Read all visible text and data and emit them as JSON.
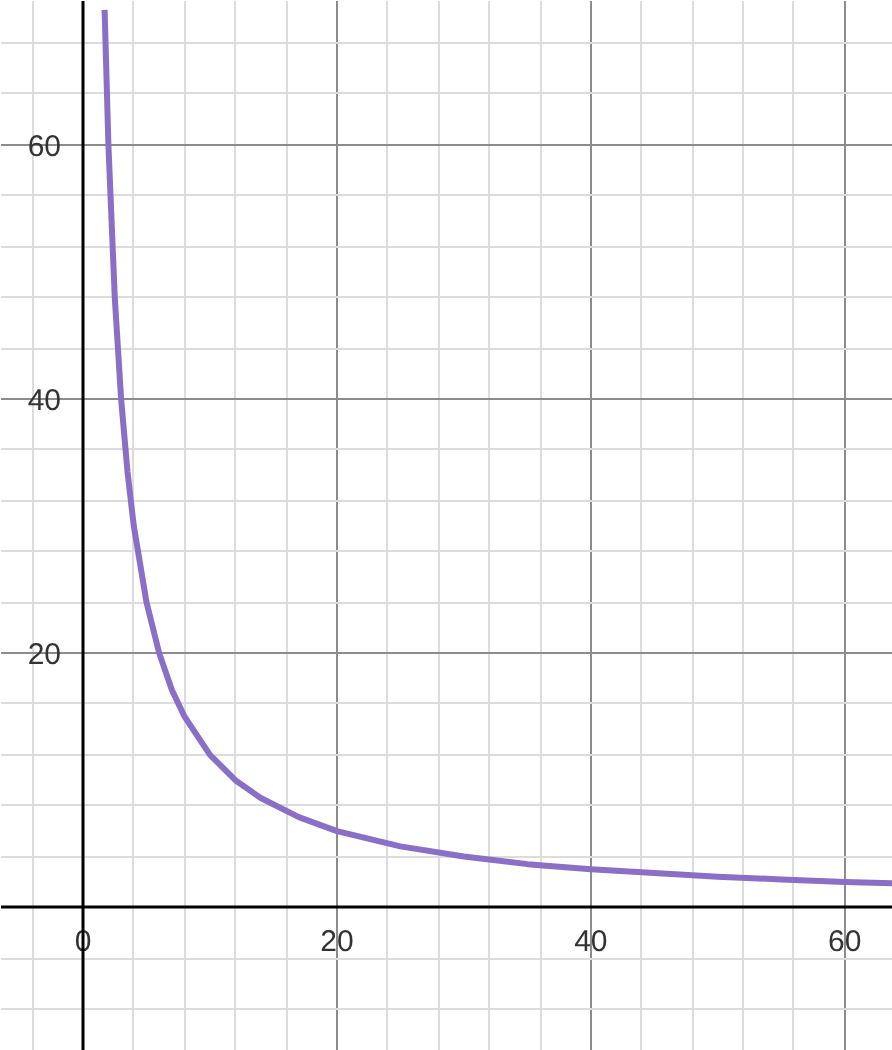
{
  "chart_data": {
    "type": "line",
    "x": [
      1.7,
      2,
      2.5,
      3,
      3.5,
      4,
      5,
      6,
      7,
      8,
      10,
      12,
      14,
      17,
      20,
      25,
      30,
      35,
      40,
      45,
      50,
      55,
      60,
      63.8
    ],
    "series": [
      {
        "color": "#8a6fc6",
        "values": [
          70.6,
          60,
          48,
          40,
          34.3,
          30,
          24,
          20,
          17.1,
          15,
          12,
          10,
          8.6,
          7.1,
          6,
          4.8,
          4,
          3.4,
          3,
          2.7,
          2.4,
          2.2,
          2,
          1.9
        ]
      }
    ],
    "xlim": [
      -6.46,
      63.8
    ],
    "ylim": [
      -11.3,
      71.3
    ],
    "xticks": [
      {
        "value": -4,
        "label": null
      },
      {
        "value": 0,
        "label": "0"
      },
      {
        "value": 4,
        "label": null
      },
      {
        "value": 8,
        "label": null
      },
      {
        "value": 12,
        "label": null
      },
      {
        "value": 16,
        "label": null
      },
      20,
      {
        "value": 24,
        "label": null
      },
      {
        "value": 28,
        "label": null
      },
      {
        "value": 32,
        "label": null
      },
      {
        "value": 36,
        "label": null
      },
      40,
      {
        "value": 44,
        "label": null
      },
      {
        "value": 48,
        "label": null
      },
      {
        "value": 52,
        "label": null
      },
      {
        "value": 56,
        "label": null
      },
      60
    ],
    "yticks": [
      {
        "value": -8,
        "label": null
      },
      {
        "value": -4,
        "label": null
      },
      {
        "value": 0,
        "label": null
      },
      {
        "value": 4,
        "label": null
      },
      {
        "value": 8,
        "label": null
      },
      {
        "value": 12,
        "label": null
      },
      {
        "value": 16,
        "label": null
      },
      20,
      {
        "value": 24,
        "label": null
      },
      {
        "value": 28,
        "label": null
      },
      {
        "value": 32,
        "label": null
      },
      {
        "value": 36,
        "label": null
      },
      40,
      {
        "value": 44,
        "label": null
      },
      {
        "value": 48,
        "label": null
      },
      {
        "value": 52,
        "label": null
      },
      {
        "value": 56,
        "label": null
      },
      60,
      {
        "value": 64,
        "label": null
      },
      {
        "value": 68,
        "label": null
      }
    ],
    "grid": true,
    "line_style": "solid"
  }
}
